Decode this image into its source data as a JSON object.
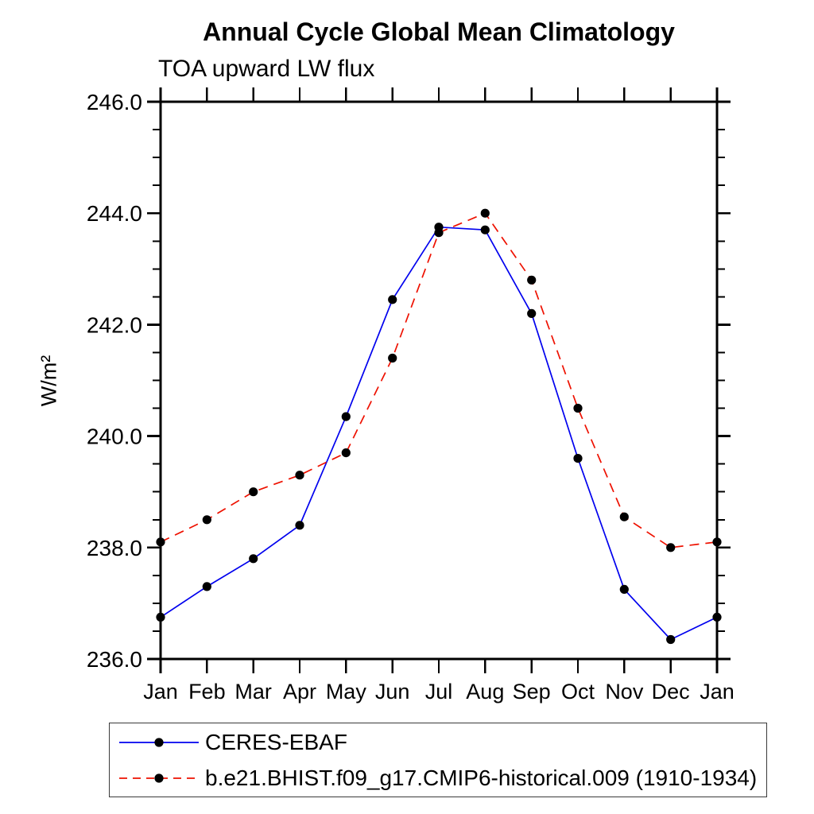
{
  "title": "Annual Cycle Global Mean Climatology",
  "subtitle": "TOA upward LW flux",
  "y_axis_label": "W/m²",
  "chart_data": {
    "type": "line",
    "title": "Annual Cycle Global Mean Climatology",
    "subtitle": "TOA upward LW flux",
    "ylabel": "W/m²",
    "xlabel": "",
    "categories": [
      "Jan",
      "Feb",
      "Mar",
      "Apr",
      "May",
      "Jun",
      "Jul",
      "Aug",
      "Sep",
      "Oct",
      "Nov",
      "Dec",
      "Jan"
    ],
    "series": [
      {
        "name": "CERES-EBAF",
        "color": "#0000ee",
        "line_style": "solid",
        "line_width": 1.7,
        "marker": "filled-circle",
        "marker_color": "#000000",
        "values": [
          236.75,
          237.3,
          237.8,
          238.4,
          240.35,
          242.45,
          243.75,
          243.7,
          242.2,
          239.6,
          237.25,
          236.35,
          236.75
        ]
      },
      {
        "name": "b.e21.BHIST.f09_g17.CMIP6-historical.009 (1910-1934)",
        "color": "#ee1100",
        "line_style": "dashed",
        "line_width": 1.7,
        "marker": "filled-circle",
        "marker_color": "#000000",
        "values": [
          238.1,
          238.5,
          239.0,
          239.3,
          239.7,
          241.4,
          243.65,
          244.0,
          242.8,
          240.5,
          238.55,
          238.0,
          238.1
        ]
      }
    ],
    "ylim": [
      236.0,
      246.0
    ],
    "ytick_major_values": [
      236.0,
      238.0,
      240.0,
      242.0,
      244.0,
      246.0
    ],
    "ytick_major_labels": [
      "236.0",
      "238.0",
      "240.0",
      "242.0",
      "244.0",
      "246.0"
    ],
    "ytick_minor_step": 0.5,
    "grid": false,
    "frame": "box-with-outward-ticks",
    "legend_position": "bottom-left-boxed",
    "axis_color": "#000000",
    "text_color": "#000000"
  }
}
